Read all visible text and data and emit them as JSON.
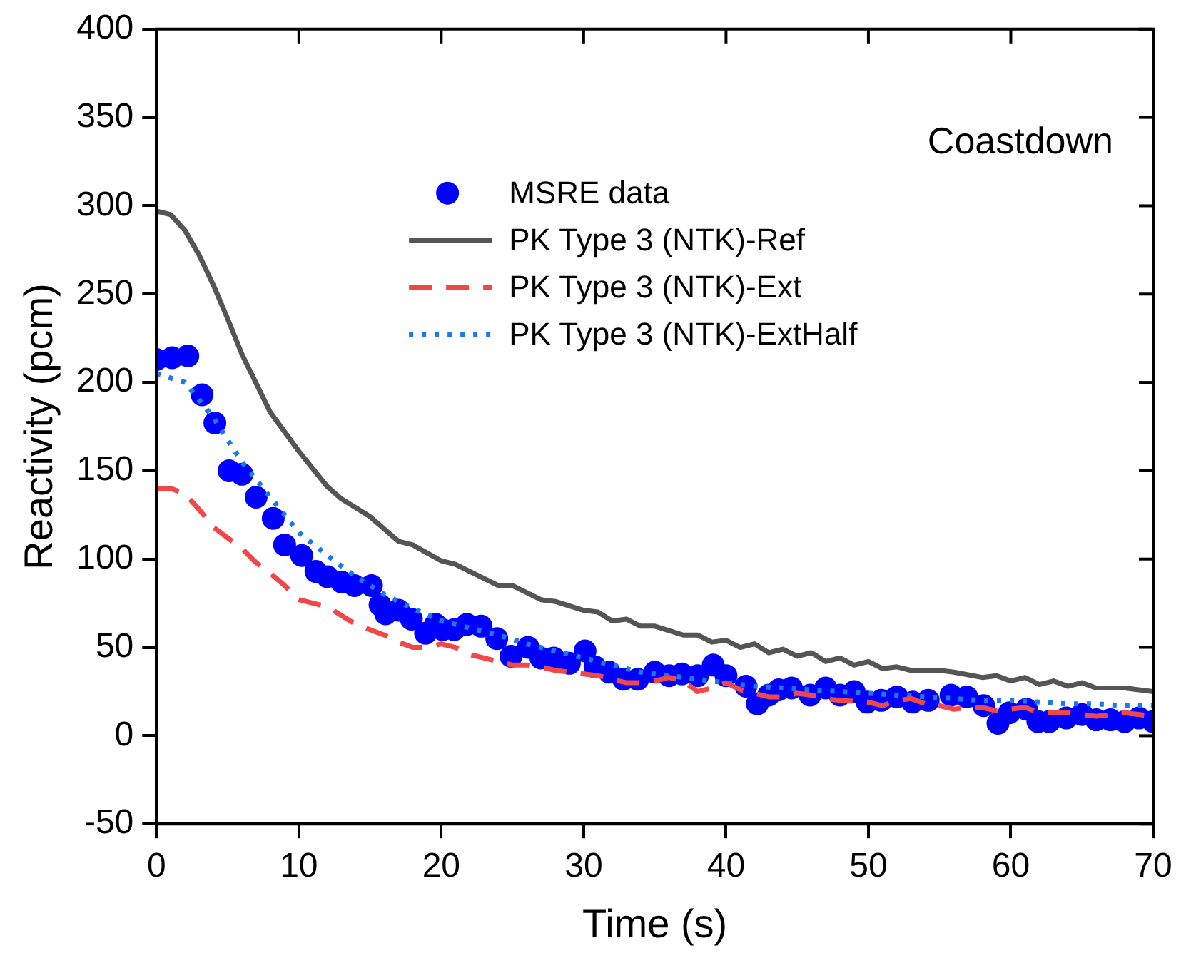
{
  "chart_data": {
    "type": "line",
    "xlabel": "Time (s)",
    "ylabel": "Reactivity (pcm)",
    "annotations": [
      "Coastdown"
    ],
    "xlim": [
      0,
      70
    ],
    "xticks": [
      0,
      10,
      20,
      30,
      40,
      50,
      60,
      70
    ],
    "ylim": [
      -50,
      400
    ],
    "yticks": [
      -50,
      0,
      50,
      100,
      150,
      200,
      250,
      300,
      350,
      400
    ],
    "grid": false,
    "legend": "top",
    "series": [
      {
        "name": "MSRE data",
        "type": "scatter",
        "marker": "circle",
        "color": "#0000ff",
        "x": [
          0,
          1.1,
          2.2,
          3.2,
          4.1,
          5.1,
          6.0,
          7.0,
          8.2,
          9.0,
          10.2,
          11.2,
          12.0,
          13.0,
          13.9,
          15.1,
          15.7,
          16.1,
          17.0,
          17.9,
          18.9,
          19.6,
          20.1,
          20.9,
          21.8,
          22.8,
          23.9,
          24.9,
          26.1,
          27.0,
          27.9,
          29.0,
          30.1,
          30.8,
          31.8,
          32.8,
          33.8,
          35.0,
          36.0,
          36.9,
          38.0,
          39.1,
          40.0,
          41.4,
          42.2,
          43.0,
          43.7,
          44.6,
          45.9,
          47.0,
          48.0,
          49.0,
          49.9,
          50.9,
          52.0,
          53.1,
          54.2,
          55.8,
          56.9,
          58.1,
          59.1,
          59.9,
          61.1,
          61.9,
          62.7,
          63.9,
          65.0,
          66.0,
          67.0,
          68.0,
          69.0,
          70
        ],
        "values": [
          213,
          214,
          215,
          193,
          177,
          150,
          148,
          135,
          123,
          108,
          102,
          93,
          90,
          87,
          85,
          85,
          74,
          69,
          71,
          66,
          58,
          63,
          60,
          60,
          63,
          62,
          55,
          45,
          50,
          44,
          44,
          41,
          48,
          39,
          36,
          32,
          32,
          36,
          34,
          35,
          34,
          40,
          34,
          28,
          18,
          23,
          26,
          27,
          23,
          27,
          23,
          25,
          19,
          20,
          22,
          19,
          20,
          23,
          22,
          17,
          7,
          13,
          15,
          8,
          8,
          10,
          12,
          9,
          9,
          8,
          10,
          8
        ]
      },
      {
        "name": "PK Type 3 (NTK)-Ref",
        "marker": "none",
        "line_style": "solid",
        "color": "#555555",
        "x": [
          0,
          1,
          2,
          3,
          4,
          5,
          6,
          8,
          10,
          12,
          13,
          15,
          17,
          18,
          20,
          21,
          22,
          23,
          24,
          25,
          27,
          28,
          30,
          31,
          32,
          33,
          34,
          35,
          37,
          38,
          39,
          40,
          41,
          42,
          43,
          44,
          45,
          46,
          47,
          48,
          49,
          50,
          51,
          52,
          53,
          55,
          56,
          58,
          59,
          60,
          61,
          62,
          63,
          64,
          65,
          66,
          68,
          70
        ],
        "values": [
          297,
          295,
          286,
          272,
          255,
          236,
          216,
          183,
          161,
          141,
          134,
          124,
          110,
          108,
          99,
          97,
          93,
          89,
          85,
          85,
          77,
          76,
          71,
          70,
          65,
          66,
          62,
          62,
          57,
          57,
          53,
          54,
          50,
          52,
          47,
          49,
          45,
          47,
          42,
          44,
          40,
          42,
          38,
          39,
          37,
          37,
          36,
          33,
          34,
          31,
          33,
          29,
          31,
          28,
          30,
          27,
          27,
          25
        ]
      },
      {
        "name": "PK Type 3 (NTK)-Ext",
        "marker": "none",
        "line_style": "dashed",
        "color": "#f04848",
        "x": [
          0,
          1,
          2,
          3,
          4,
          6,
          7,
          8,
          9,
          10,
          11,
          12,
          13,
          14,
          15,
          16,
          17,
          18,
          19,
          20,
          21,
          22,
          23,
          25,
          26,
          27,
          28,
          30,
          31,
          32,
          33,
          34,
          35,
          36,
          37,
          38,
          39,
          40,
          41,
          42,
          43,
          44,
          45,
          46,
          47,
          48,
          50,
          51,
          52,
          53,
          54,
          55,
          56,
          57,
          58,
          59,
          60,
          61,
          62,
          64,
          66,
          68,
          70
        ],
        "values": [
          140,
          140,
          137,
          128,
          118,
          106,
          98,
          92,
          85,
          77,
          75,
          73,
          68,
          63,
          60,
          57,
          53,
          50,
          50,
          52,
          50,
          46,
          44,
          40,
          40,
          39,
          37,
          35,
          34,
          32,
          30,
          30,
          31,
          33,
          31,
          25,
          27,
          30,
          26,
          24,
          22,
          22,
          24,
          23,
          21,
          20,
          19,
          17,
          20,
          21,
          18,
          17,
          15,
          16,
          16,
          14,
          15,
          16,
          13,
          13,
          11,
          13,
          11
        ]
      },
      {
        "name": "PK Type 3 (NTK)-ExtHalf",
        "marker": "none",
        "line_style": "dotted",
        "color": "#1e78e6",
        "x": [
          0,
          2,
          4,
          6,
          8,
          10,
          12,
          14,
          16,
          18,
          20,
          22,
          24,
          26,
          28,
          30,
          32,
          34,
          36,
          38,
          40,
          42,
          44,
          46,
          48,
          50,
          52,
          54,
          56,
          58,
          60,
          62,
          64,
          66,
          68,
          70
        ],
        "values": [
          205,
          200,
          180,
          155,
          135,
          115,
          102,
          90,
          80,
          72,
          65,
          61,
          57,
          52,
          48,
          44,
          40,
          36,
          34,
          32,
          30,
          28,
          27,
          26,
          25,
          24,
          23,
          22,
          21,
          20,
          20,
          19,
          18,
          18,
          17,
          17
        ]
      }
    ]
  }
}
